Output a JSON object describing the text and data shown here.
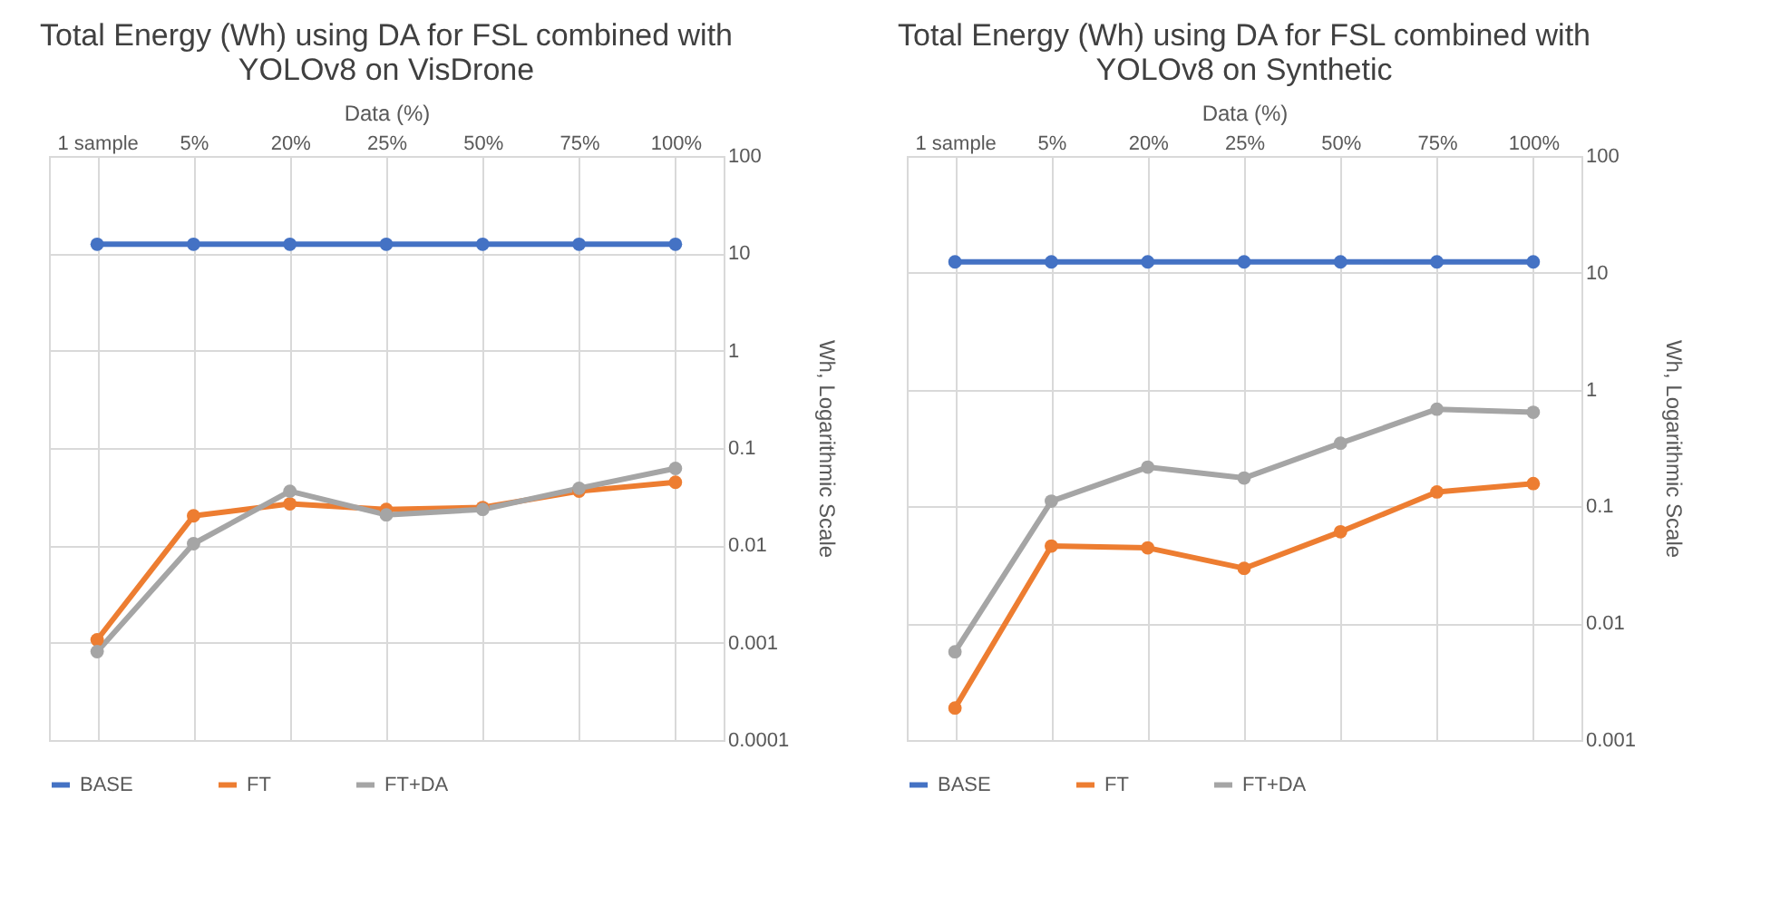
{
  "chart_data": [
    {
      "type": "line",
      "title": "Total Energy (Wh) using DA for FSL combined with YOLOv8 on VisDrone",
      "xlabel": "Data (%)",
      "ylabel": "Wh, Logarithmic Scale",
      "categories": [
        "1 sample",
        "5%",
        "20%",
        "25%",
        "50%",
        "75%",
        "100%"
      ],
      "series": [
        {
          "name": "BASE",
          "color": "#4472c4",
          "values": [
            12.4,
            12.4,
            12.4,
            12.4,
            12.4,
            12.4,
            12.4
          ]
        },
        {
          "name": "FT",
          "color": "#ed7d31",
          "values": [
            0.00107,
            0.0201,
            0.0267,
            0.0234,
            0.0245,
            0.036,
            0.0445
          ]
        },
        {
          "name": "FT+DA",
          "color": "#a5a5a5",
          "values": [
            0.00081,
            0.0104,
            0.036,
            0.0206,
            0.0234,
            0.0386,
            0.0617
          ]
        }
      ],
      "ylim": [
        0.0001,
        100
      ],
      "yticks": [
        0.0001,
        0.001,
        0.01,
        0.1,
        1,
        10,
        100
      ],
      "log": true,
      "grid": true,
      "legend": "bottom",
      "marker": "circle",
      "line_style": "solid"
    },
    {
      "type": "line",
      "title": "Total Energy (Wh) using DA for FSL combined with YOLOv8 on Synthetic",
      "xlabel": "Data (%)",
      "ylabel": "Wh, Logarithmic Scale",
      "categories": [
        "1 sample",
        "5%",
        "20%",
        "25%",
        "50%",
        "75%",
        "100%"
      ],
      "series": [
        {
          "name": "BASE",
          "color": "#4472c4",
          "values": [
            12.4,
            12.4,
            12.4,
            12.4,
            12.4,
            12.4,
            12.4
          ]
        },
        {
          "name": "FT",
          "color": "#ed7d31",
          "values": [
            0.00188,
            0.0458,
            0.0442,
            0.0295,
            0.0607,
            0.133,
            0.157
          ]
        },
        {
          "name": "FT+DA",
          "color": "#a5a5a5",
          "values": [
            0.0057,
            0.111,
            0.217,
            0.175,
            0.348,
            0.68,
            0.64
          ]
        }
      ],
      "ylim": [
        0.001,
        100
      ],
      "yticks": [
        0.001,
        0.01,
        0.1,
        1,
        10,
        100
      ],
      "log": true,
      "grid": true,
      "legend": "bottom",
      "marker": "circle",
      "line_style": "solid"
    }
  ]
}
